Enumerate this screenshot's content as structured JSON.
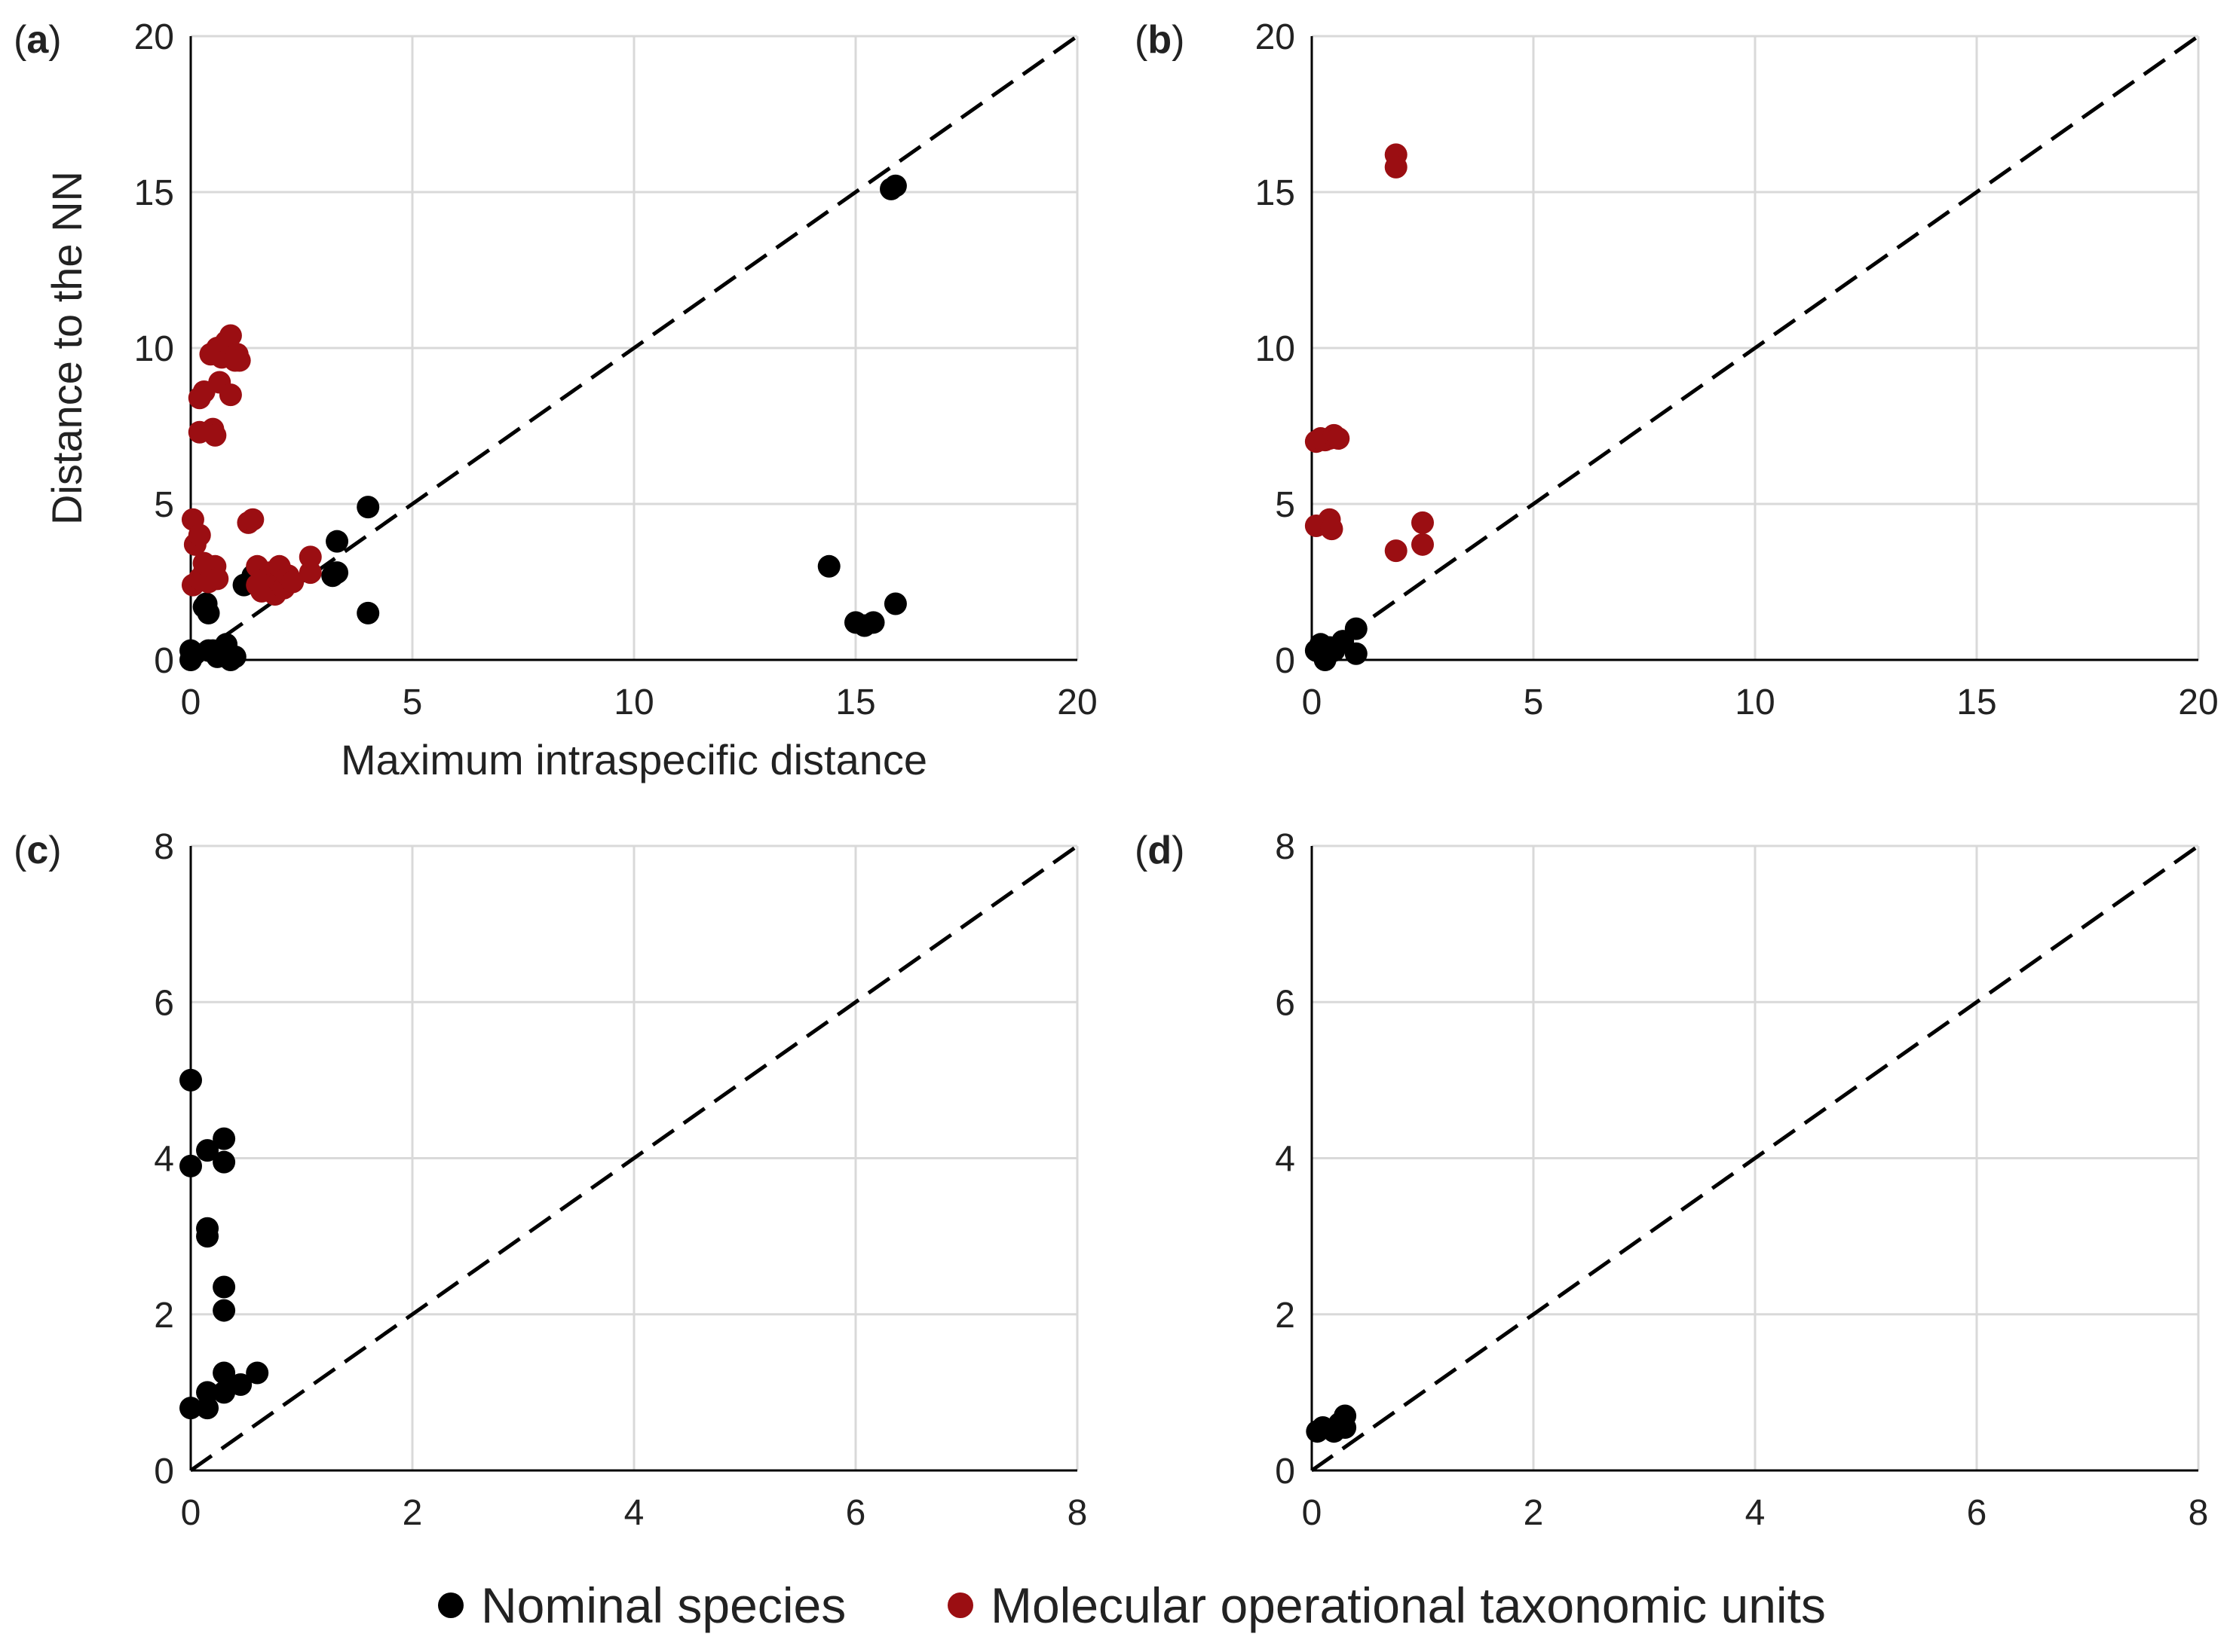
{
  "figure": {
    "legend": [
      {
        "key": "nominal",
        "label": "Nominal species",
        "color": "#000000"
      },
      {
        "key": "motu",
        "label": "Molecular operational taxonomic units",
        "color": "#9b0e12"
      }
    ]
  },
  "chart_data": [
    {
      "id": "a",
      "label_prefix": "(",
      "label_letter": "a",
      "label_suffix": ")",
      "type": "scatter",
      "xlabel": "Maximum intraspecific distance",
      "ylabel": "Distance to the NN",
      "xlim": [
        0,
        20
      ],
      "ylim": [
        0,
        20
      ],
      "xticks": [
        0,
        5,
        10,
        15,
        20
      ],
      "yticks": [
        0,
        5,
        10,
        15,
        20
      ],
      "grid": true,
      "reference_line": "y = x (dashed)",
      "series": [
        {
          "name": "Nominal species",
          "color": "#000000",
          "points": [
            [
              0,
              0.3
            ],
            [
              0,
              0.0
            ],
            [
              0.1,
              0.2
            ],
            [
              0.3,
              1.7
            ],
            [
              0.35,
              1.8
            ],
            [
              0.4,
              1.5
            ],
            [
              0.4,
              0.3
            ],
            [
              0.5,
              0.3
            ],
            [
              0.6,
              0.1
            ],
            [
              0.8,
              0.5
            ],
            [
              0.9,
              0.0
            ],
            [
              1.0,
              0.1
            ],
            [
              1.2,
              2.4
            ],
            [
              1.4,
              2.7
            ],
            [
              1.5,
              2.9
            ],
            [
              3.2,
              2.7
            ],
            [
              3.3,
              2.8
            ],
            [
              3.3,
              3.8
            ],
            [
              4.0,
              1.5
            ],
            [
              4.0,
              4.9
            ],
            [
              14.4,
              3.0
            ],
            [
              15.0,
              1.2
            ],
            [
              15.2,
              1.1
            ],
            [
              15.4,
              1.2
            ],
            [
              15.8,
              15.1
            ],
            [
              15.9,
              15.2
            ],
            [
              15.9,
              1.8
            ]
          ]
        },
        {
          "name": "Molecular operational taxonomic units",
          "color": "#9b0e12",
          "points": [
            [
              0.05,
              4.5
            ],
            [
              0.05,
              2.4
            ],
            [
              0.1,
              3.7
            ],
            [
              0.2,
              2.6
            ],
            [
              0.2,
              4.0
            ],
            [
              0.3,
              2.8
            ],
            [
              0.3,
              3.1
            ],
            [
              0.4,
              2.5
            ],
            [
              0.5,
              2.8
            ],
            [
              0.55,
              3.0
            ],
            [
              0.6,
              2.6
            ],
            [
              0.2,
              8.4
            ],
            [
              0.2,
              7.3
            ],
            [
              0.3,
              8.6
            ],
            [
              0.45,
              9.8
            ],
            [
              0.5,
              7.4
            ],
            [
              0.55,
              7.2
            ],
            [
              0.6,
              10.0
            ],
            [
              0.65,
              8.9
            ],
            [
              0.7,
              9.7
            ],
            [
              0.8,
              10.2
            ],
            [
              0.9,
              10.4
            ],
            [
              0.9,
              8.5
            ],
            [
              1.0,
              9.6
            ],
            [
              1.05,
              9.8
            ],
            [
              1.1,
              9.6
            ],
            [
              1.3,
              4.4
            ],
            [
              1.4,
              4.5
            ],
            [
              1.5,
              2.4
            ],
            [
              1.5,
              3.0
            ],
            [
              1.6,
              2.2
            ],
            [
              1.7,
              2.6
            ],
            [
              1.8,
              2.8
            ],
            [
              1.8,
              2.4
            ],
            [
              1.9,
              2.1
            ],
            [
              2.0,
              2.5
            ],
            [
              2.0,
              3.0
            ],
            [
              2.1,
              2.3
            ],
            [
              2.2,
              2.7
            ],
            [
              2.3,
              2.5
            ],
            [
              2.7,
              2.8
            ],
            [
              2.7,
              3.3
            ]
          ]
        }
      ]
    },
    {
      "id": "b",
      "label_prefix": "(",
      "label_letter": "b",
      "label_suffix": ")",
      "type": "scatter",
      "xlabel": "",
      "ylabel": "",
      "xlim": [
        0,
        20
      ],
      "ylim": [
        0,
        20
      ],
      "xticks": [
        0,
        5,
        10,
        15,
        20
      ],
      "yticks": [
        0,
        5,
        10,
        15,
        20
      ],
      "grid": true,
      "reference_line": "y = x (dashed)",
      "series": [
        {
          "name": "Nominal species",
          "color": "#000000",
          "points": [
            [
              0.1,
              0.3
            ],
            [
              0.2,
              0.5
            ],
            [
              0.3,
              0.0
            ],
            [
              0.4,
              0.4
            ],
            [
              0.5,
              0.3
            ],
            [
              0.7,
              0.6
            ],
            [
              1.0,
              1.0
            ],
            [
              1.0,
              0.2
            ]
          ]
        },
        {
          "name": "Molecular operational taxonomic units",
          "color": "#9b0e12",
          "points": [
            [
              0.1,
              7.0
            ],
            [
              0.2,
              7.1
            ],
            [
              0.3,
              7.05
            ],
            [
              0.4,
              7.1
            ],
            [
              0.5,
              7.2
            ],
            [
              0.6,
              7.1
            ],
            [
              0.1,
              4.3
            ],
            [
              0.4,
              4.5
            ],
            [
              0.45,
              4.2
            ],
            [
              1.9,
              16.2
            ],
            [
              1.9,
              15.8
            ],
            [
              1.9,
              3.5
            ],
            [
              2.5,
              4.4
            ],
            [
              2.5,
              3.7
            ]
          ]
        }
      ]
    },
    {
      "id": "c",
      "label_prefix": "(",
      "label_letter": "c",
      "label_suffix": ")",
      "type": "scatter",
      "xlabel": "",
      "ylabel": "",
      "xlim": [
        0,
        8
      ],
      "ylim": [
        0,
        8
      ],
      "xticks": [
        0,
        2,
        4,
        6,
        8
      ],
      "yticks": [
        0,
        2,
        4,
        6,
        8
      ],
      "grid": true,
      "reference_line": "y = x (dashed)",
      "series": [
        {
          "name": "Nominal species",
          "color": "#000000",
          "points": [
            [
              0.0,
              5.0
            ],
            [
              0.0,
              3.9
            ],
            [
              0.0,
              0.8
            ],
            [
              0.15,
              4.1
            ],
            [
              0.15,
              3.1
            ],
            [
              0.15,
              3.0
            ],
            [
              0.15,
              1.0
            ],
            [
              0.15,
              0.8
            ],
            [
              0.3,
              4.25
            ],
            [
              0.3,
              3.95
            ],
            [
              0.3,
              2.35
            ],
            [
              0.3,
              2.05
            ],
            [
              0.3,
              1.25
            ],
            [
              0.3,
              1.0
            ],
            [
              0.45,
              1.1
            ],
            [
              0.6,
              1.25
            ]
          ]
        }
      ]
    },
    {
      "id": "d",
      "label_prefix": "(",
      "label_letter": "d",
      "label_suffix": ")",
      "type": "scatter",
      "xlabel": "",
      "ylabel": "",
      "xlim": [
        0,
        8
      ],
      "ylim": [
        0,
        8
      ],
      "xticks": [
        0,
        2,
        4,
        6,
        8
      ],
      "yticks": [
        0,
        2,
        4,
        6,
        8
      ],
      "grid": true,
      "reference_line": "y = x (dashed)",
      "series": [
        {
          "name": "Nominal species",
          "color": "#000000",
          "points": [
            [
              0.05,
              0.5
            ],
            [
              0.1,
              0.55
            ],
            [
              0.2,
              0.5
            ],
            [
              0.25,
              0.6
            ],
            [
              0.3,
              0.7
            ],
            [
              0.3,
              0.55
            ]
          ]
        }
      ]
    }
  ]
}
